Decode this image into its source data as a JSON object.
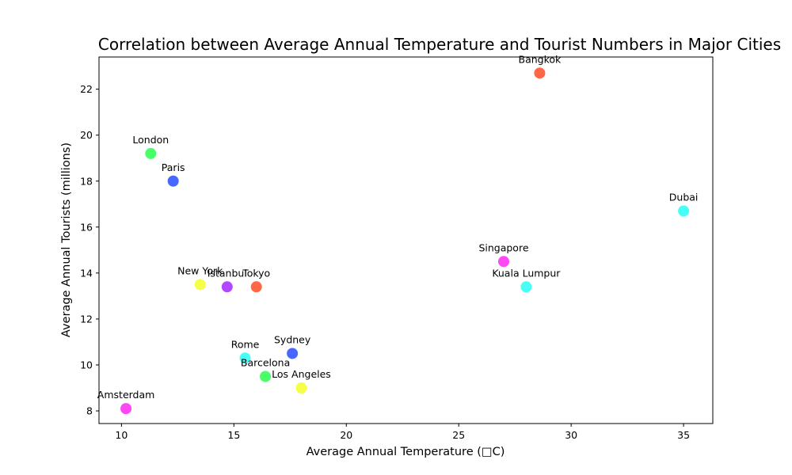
{
  "chart_data": {
    "type": "scatter",
    "title": "Correlation between Average Annual Temperature and Tourist Numbers in Major Cities",
    "xlabel": "Average Annual Temperature (□C)",
    "ylabel": "Average Annual Tourists (millions)",
    "xlim": [
      9.0,
      36.3
    ],
    "ylim": [
      7.45,
      23.4
    ],
    "xticks": [
      10,
      15,
      20,
      25,
      30,
      35
    ],
    "yticks": [
      8,
      10,
      12,
      14,
      16,
      18,
      20,
      22
    ],
    "grid": false,
    "points": [
      {
        "label": "Bangkok",
        "x": 28.6,
        "y": 22.7,
        "color": "#ff5733"
      },
      {
        "label": "London",
        "x": 11.3,
        "y": 19.2,
        "color": "#33ff57"
      },
      {
        "label": "Paris",
        "x": 12.3,
        "y": 18.0,
        "color": "#3357ff"
      },
      {
        "label": "Dubai",
        "x": 35.0,
        "y": 16.7,
        "color": "#33fff5"
      },
      {
        "label": "Singapore",
        "x": 27.0,
        "y": 14.5,
        "color": "#ff33f5"
      },
      {
        "label": "New York",
        "x": 13.5,
        "y": 13.5,
        "color": "#f5ff33"
      },
      {
        "label": "Istanbul",
        "x": 14.7,
        "y": 13.4,
        "color": "#a833ff"
      },
      {
        "label": "Tokyo",
        "x": 16.0,
        "y": 13.4,
        "color": "#ff5733"
      },
      {
        "label": "Kuala Lumpur",
        "x": 28.0,
        "y": 13.4,
        "color": "#33fff5"
      },
      {
        "label": "Sydney",
        "x": 17.6,
        "y": 10.5,
        "color": "#3357ff"
      },
      {
        "label": "Rome",
        "x": 15.5,
        "y": 10.3,
        "color": "#33fff5"
      },
      {
        "label": "Barcelona",
        "x": 16.4,
        "y": 9.5,
        "color": "#33ff57"
      },
      {
        "label": "Los Angeles",
        "x": 18.0,
        "y": 9.0,
        "color": "#f5ff33"
      },
      {
        "label": "Amsterdam",
        "x": 10.2,
        "y": 8.1,
        "color": "#ff33f5"
      }
    ]
  }
}
